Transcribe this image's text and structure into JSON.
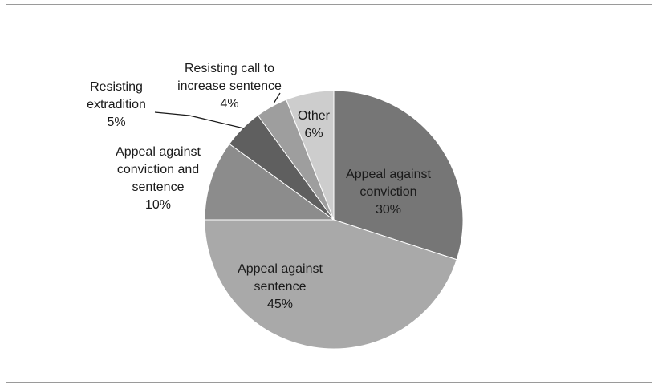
{
  "chart_data": {
    "type": "pie",
    "start_angle_deg": 0,
    "direction": "clockwise",
    "slices": [
      {
        "label_lines": [
          "Appeal against",
          "conviction"
        ],
        "percent_label": "30%",
        "value": 30,
        "color": "#767676"
      },
      {
        "label_lines": [
          "Appeal against",
          "sentence"
        ],
        "percent_label": "45%",
        "value": 45,
        "color": "#a9a9a9"
      },
      {
        "label_lines": [
          "Appeal against",
          "conviction and",
          "sentence"
        ],
        "percent_label": "10%",
        "value": 10,
        "color": "#8c8c8c"
      },
      {
        "label_lines": [
          "Resisting",
          "extradition"
        ],
        "percent_label": "5%",
        "value": 5,
        "color": "#5f5f5f"
      },
      {
        "label_lines": [
          "Resisting call to",
          "increase sentence"
        ],
        "percent_label": "4%",
        "value": 4,
        "color": "#9e9e9e"
      },
      {
        "label_lines": [
          "Other"
        ],
        "percent_label": "6%",
        "value": 6,
        "color": "#cdcdcd"
      }
    ]
  }
}
